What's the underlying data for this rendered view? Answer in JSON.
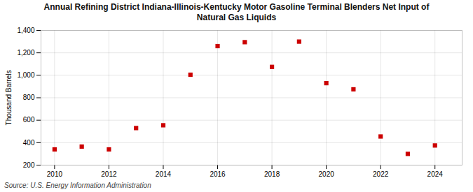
{
  "chart_data": {
    "type": "scatter",
    "title": "Annual Refining District Indiana-Illinois-Kentucky Motor Gasoline Terminal Blenders Net Input of\nNatural Gas Liquids",
    "ylabel": "Thousand Barrels",
    "source": "Source: U.S. Energy Information Administration",
    "x": [
      2010,
      2011,
      2012,
      2013,
      2014,
      2015,
      2016,
      2017,
      2018,
      2019,
      2020,
      2021,
      2022,
      2023,
      2024
    ],
    "values": [
      340,
      365,
      340,
      530,
      555,
      1005,
      1260,
      1295,
      1075,
      1300,
      930,
      875,
      455,
      300,
      375
    ],
    "color": "#cc0000",
    "marker": "square",
    "xlim": [
      2009.5,
      2025.0
    ],
    "ylim": [
      200,
      1400
    ],
    "xticks": [
      2010,
      2012,
      2014,
      2016,
      2018,
      2020,
      2022,
      2024
    ],
    "yticks": [
      200,
      400,
      600,
      800,
      {
        "value": 1000,
        "label": "1,000"
      },
      {
        "value": 1200,
        "label": "1,200"
      },
      {
        "value": 1400,
        "label": "1,400"
      }
    ],
    "grid": true
  }
}
